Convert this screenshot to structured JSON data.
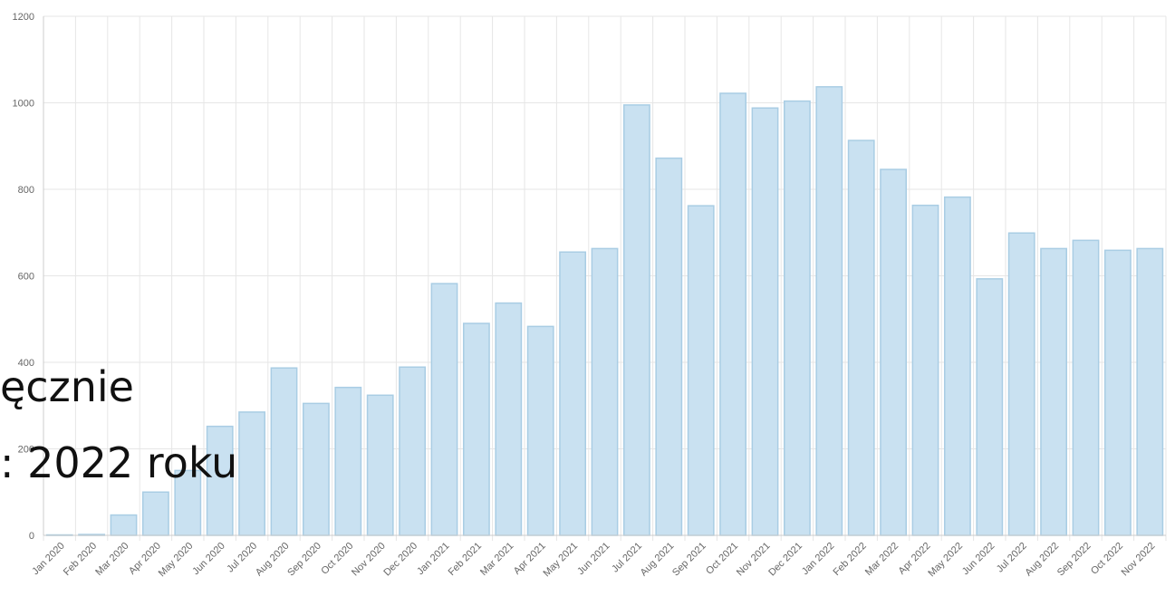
{
  "chart_data": {
    "type": "bar",
    "title": "",
    "xlabel": "",
    "ylabel": "",
    "ylim": [
      0,
      1200
    ],
    "yticks": [
      0,
      200,
      400,
      600,
      800,
      1000,
      1200
    ],
    "grid": true,
    "colors": {
      "bar_fill": "#c9e1f1",
      "bar_stroke": "#a9cde4",
      "grid": "#e6e6e6"
    },
    "categories": [
      "Jan 2020",
      "Feb 2020",
      "Mar 2020",
      "Apr 2020",
      "May 2020",
      "Jun 2020",
      "Jul 2020",
      "Aug 2020",
      "Sep 2020",
      "Oct 2020",
      "Nov 2020",
      "Dec 2020",
      "Jan 2021",
      "Feb 2021",
      "Mar 2021",
      "Apr 2021",
      "May 2021",
      "Jun 2021",
      "Jul 2021",
      "Aug 2021",
      "Sep 2021",
      "Oct 2021",
      "Nov 2021",
      "Dec 2021",
      "Jan 2022",
      "Feb 2022",
      "Mar 2022",
      "Apr 2022",
      "May 2022",
      "Jun 2022",
      "Jul 2022",
      "Aug 2022",
      "Sep 2022",
      "Oct 2022",
      "Nov 2022"
    ],
    "values": [
      1,
      2,
      47,
      100,
      150,
      252,
      285,
      387,
      305,
      342,
      324,
      389,
      582,
      490,
      537,
      483,
      655,
      663,
      995,
      872,
      762,
      1022,
      988,
      1004,
      1037,
      913,
      846,
      763,
      782,
      593,
      699,
      663,
      682,
      659,
      663
    ]
  },
  "overlay": {
    "line1": "ęcznie",
    "line2": ": 2022 roku"
  }
}
